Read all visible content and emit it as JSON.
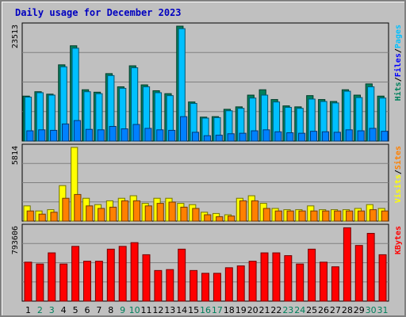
{
  "chart_data": {
    "type": "bar",
    "title": "Daily usage for December 2023",
    "categories": [
      "1",
      "2",
      "3",
      "4",
      "5",
      "6",
      "7",
      "8",
      "9",
      "10",
      "11",
      "12",
      "13",
      "14",
      "15",
      "16",
      "17",
      "18",
      "19",
      "20",
      "21",
      "22",
      "23",
      "24",
      "25",
      "26",
      "27",
      "28",
      "29",
      "30",
      "31"
    ],
    "weekend_days": [
      "2",
      "3",
      "9",
      "10",
      "16",
      "17",
      "23",
      "24",
      "30",
      "31"
    ],
    "panels": [
      {
        "name": "requests",
        "max_label": "23513",
        "ylim": [
          0,
          23513
        ],
        "right_label_parts": [
          "Hits",
          "/",
          "Files",
          "/",
          "Pages"
        ],
        "series": [
          {
            "name": "Hits",
            "color": "#00805c",
            "values": [
              9200,
              10100,
              9600,
              15600,
              19500,
              10500,
              10000,
              13800,
              11100,
              15400,
              11500,
              10300,
              9700,
              23513,
              8000,
              4900,
              5000,
              6500,
              7000,
              9400,
              10500,
              8500,
              7200,
              7000,
              9300,
              8500,
              8100,
              10500,
              9400,
              11700,
              9200
            ]
          },
          {
            "name": "Files",
            "color": "#00c0ff",
            "values": [
              9000,
              9900,
              9400,
              15200,
              19000,
              10100,
              9700,
              13400,
              10800,
              15000,
              11100,
              9900,
              9300,
              23000,
              7700,
              4700,
              4800,
              6200,
              6700,
              8800,
              9400,
              8000,
              6900,
              6700,
              8600,
              8100,
              7800,
              10200,
              8900,
              11100,
              8800
            ]
          },
          {
            "name": "Pages",
            "color": "#0080ff",
            "values": [
              2100,
              2300,
              2200,
              3500,
              4200,
              2400,
              2300,
              3000,
              2500,
              3400,
              2600,
              2300,
              2200,
              5000,
              1800,
              1100,
              1200,
              1500,
              1600,
              2100,
              2300,
              1900,
              1700,
              1600,
              2000,
              1900,
              1800,
              2300,
              2100,
              2600,
              2000
            ]
          }
        ]
      },
      {
        "name": "visitors",
        "max_label": "5814",
        "ylim": [
          0,
          5814
        ],
        "right_label_parts": [
          "Visits",
          "/",
          "Sites"
        ],
        "series": [
          {
            "name": "Visits",
            "color": "#ffff00",
            "values": [
              1200,
              800,
              900,
              2800,
              5814,
              1800,
              1300,
              1600,
              1800,
              2000,
              1400,
              1800,
              1800,
              1400,
              1300,
              700,
              600,
              500,
              1800,
              2000,
              1400,
              1000,
              900,
              900,
              1200,
              900,
              900,
              900,
              1000,
              1300,
              1000
            ]
          },
          {
            "name": "Sites",
            "color": "#ff8000",
            "values": [
              800,
              550,
              700,
              1800,
              2100,
              1200,
              1000,
              1100,
              1600,
              1600,
              1200,
              1400,
              1500,
              1100,
              1000,
              500,
              350,
              400,
              1600,
              1600,
              1000,
              800,
              800,
              800,
              800,
              800,
              800,
              800,
              800,
              900,
              800
            ]
          }
        ]
      },
      {
        "name": "bandwidth",
        "max_label": "793606",
        "ylim": [
          0,
          793606
        ],
        "right_label_parts": [
          "KBytes"
        ],
        "series": [
          {
            "name": "KBytes",
            "color": "#ff0000",
            "values": [
              420000,
              400000,
              520000,
              400000,
              590000,
              430000,
              430000,
              560000,
              590000,
              630000,
              500000,
              330000,
              340000,
              560000,
              330000,
              300000,
              300000,
              360000,
              380000,
              430000,
              520000,
              520000,
              490000,
              400000,
              560000,
              420000,
              370000,
              790000,
              600000,
              730000,
              500000
            ]
          }
        ]
      }
    ]
  }
}
